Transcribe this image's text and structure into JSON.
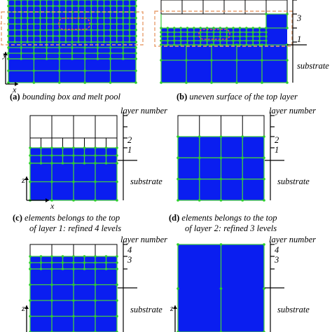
{
  "colors": {
    "fill": "#0a1ef0",
    "grid": "#44cc44",
    "node": "#2bd02b",
    "line": "#000000",
    "highlight": "#e8a070",
    "pool": "#ee5555"
  },
  "axes": {
    "x": "x",
    "y": "y",
    "z": "z"
  },
  "panels": {
    "a": {
      "caption_tag": "(a)",
      "caption_text": " bounding box and melt pool"
    },
    "b": {
      "caption_tag": "(b)",
      "caption_text": " uneven surface of the top layer",
      "levels": [
        "3",
        "1"
      ],
      "substrate": "substrate"
    },
    "c": {
      "caption_tag": "(c)",
      "caption_text": " elements belongs to the top",
      "caption_line2": "of layer 1: refined 4 levels",
      "heading": "layer number",
      "levels": [
        "2",
        "1"
      ],
      "substrate": "substrate"
    },
    "d": {
      "caption_tag": "(d)",
      "caption_text": " elements belongs to the top",
      "caption_line2": "of layer 2: refined 3 levels",
      "heading": "layer number",
      "levels": [
        "2",
        "1"
      ],
      "substrate": "substrate"
    },
    "e": {
      "heading": "layer number",
      "levels": [
        "4",
        "3"
      ],
      "substrate": "substrate"
    },
    "f": {
      "heading": "layer number",
      "levels": [
        "4",
        "3"
      ],
      "substrate": "substrate"
    }
  }
}
